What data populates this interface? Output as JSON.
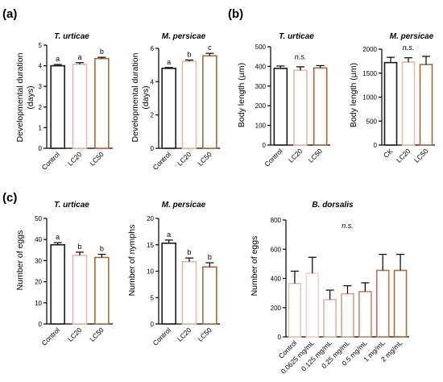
{
  "panels": [
    {
      "letter": "(a)"
    },
    {
      "letter": "(b)"
    },
    {
      "letter": "(c)"
    }
  ],
  "palette": {
    "control": "#1a1a1a",
    "lc20": "#e7b7a7",
    "lc50": "#a56a3b",
    "ck": "#1a1a1a",
    "bd": [
      "#e9c4b4",
      "#f0d6ca",
      "#e5b3a1",
      "#d9a089",
      "#c98a6c",
      "#b8774f",
      "#a66a3c"
    ]
  },
  "chart_data": [
    {
      "id": "a1",
      "type": "bar",
      "title": "T. urticae",
      "ylabel": "Developmental duration (days)",
      "categories": [
        "Control",
        "LC20",
        "LC50"
      ],
      "values": [
        4.0,
        4.07,
        4.35
      ],
      "errors": [
        0.06,
        0.08,
        0.06
      ],
      "significance": [
        "a",
        "a",
        "b"
      ],
      "ylim": [
        0,
        5
      ],
      "yticks": [
        0,
        1,
        2,
        3,
        4,
        5
      ]
    },
    {
      "id": "a2",
      "type": "bar",
      "title": "M. persicae",
      "ylabel": "Developmental duration (days)",
      "categories": [
        "Control",
        "LC20",
        "LC50"
      ],
      "values": [
        4.8,
        5.22,
        5.55
      ],
      "errors": [
        0.05,
        0.08,
        0.15
      ],
      "significance": [
        "a",
        "b",
        "c"
      ],
      "ylim": [
        0,
        6
      ],
      "yticks": [
        0,
        2,
        4,
        6
      ]
    },
    {
      "id": "b1",
      "type": "bar",
      "title": "T. urticae",
      "ylabel": "Body length (µm)",
      "categories": [
        "Control",
        "LC20",
        "LC50"
      ],
      "values": [
        390,
        380,
        392
      ],
      "errors": [
        12,
        18,
        12
      ],
      "significance_note": "n.s.",
      "ylim": [
        0,
        500
      ],
      "yticks": [
        0,
        100,
        200,
        300,
        400,
        500
      ]
    },
    {
      "id": "b2",
      "type": "bar",
      "title": "M. persicae",
      "ylabel": "Body length (µm)",
      "categories": [
        "CK",
        "LC20",
        "LC50"
      ],
      "values": [
        1720,
        1730,
        1680
      ],
      "errors": [
        110,
        90,
        170
      ],
      "significance_note": "n.s.",
      "ylim": [
        0,
        2000
      ],
      "yticks": [
        0,
        500,
        1000,
        1500,
        2000
      ]
    },
    {
      "id": "c1",
      "type": "bar",
      "title": "T. urticae",
      "ylabel": "Number of eggs",
      "categories": [
        "Control",
        "LC20",
        "LC50"
      ],
      "values": [
        37.5,
        32.5,
        31.5
      ],
      "errors": [
        1.0,
        1.5,
        1.5
      ],
      "significance": [
        "a",
        "b",
        "b"
      ],
      "ylim": [
        0,
        50
      ],
      "yticks": [
        0,
        10,
        20,
        30,
        40,
        50
      ]
    },
    {
      "id": "c2",
      "type": "bar",
      "title": "M. persicae",
      "ylabel": "Number of nymphs",
      "categories": [
        "Control",
        "LC20",
        "LC50"
      ],
      "values": [
        15.3,
        11.8,
        10.8
      ],
      "errors": [
        0.6,
        0.7,
        0.8
      ],
      "significance": [
        "a",
        "b",
        "b"
      ],
      "ylim": [
        0,
        20
      ],
      "yticks": [
        0,
        5,
        10,
        15,
        20
      ]
    },
    {
      "id": "c3",
      "type": "bar",
      "title": "B. dorsalis",
      "ylabel": "Number of eggs",
      "categories": [
        "Control",
        "0.0625 mg/mL",
        "0.125 mg/mL",
        "0.25 mg/mL",
        "0.5 mg/mL",
        "1 mg/mL",
        "2 mg/mL"
      ],
      "values": [
        365,
        435,
        255,
        295,
        310,
        455,
        455
      ],
      "errors": [
        85,
        110,
        65,
        55,
        60,
        110,
        110
      ],
      "significance_note": "n.s.",
      "ylim": [
        0,
        800
      ],
      "yticks": [
        0,
        200,
        400,
        600,
        800
      ]
    }
  ]
}
